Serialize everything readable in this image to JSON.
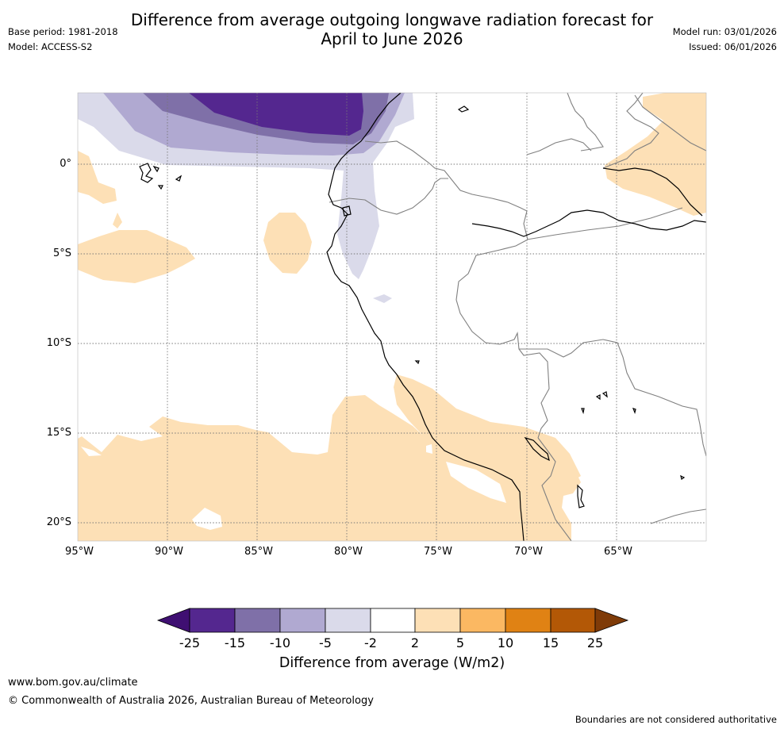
{
  "header": {
    "title_line1": "Difference from average outgoing longwave radiation forecast for",
    "title_line2": "April to June 2026",
    "base_period": "Base period: 1981-2018",
    "model": "Model: ACCESS-S2",
    "model_run": "Model run: 03/01/2026",
    "issued": "Issued: 06/01/2026"
  },
  "map": {
    "lon_range": [
      -95,
      -60
    ],
    "lat_range": [
      -21,
      4
    ],
    "lat_labels": [
      "0°",
      "5°S",
      "10°S",
      "15°S",
      "20°S"
    ],
    "lon_labels": [
      "95°W",
      "90°W",
      "85°W",
      "80°W",
      "75°W",
      "70°W",
      "65°W"
    ]
  },
  "colorbar": {
    "title": "Difference from average (W/m2)",
    "ticks": [
      "-25",
      "-15",
      "-10",
      "-5",
      "-2",
      "2",
      "5",
      "10",
      "15",
      "25"
    ],
    "colors": [
      "#3f0f72",
      "#54278f",
      "#7f70a8",
      "#b0a9d1",
      "#dadaea",
      "#ffffff",
      "#fde0b6",
      "#fbb862",
      "#e08214",
      "#b35806",
      "#7f3b08"
    ]
  },
  "footer": {
    "url": "www.bom.gov.au/climate",
    "copyright": "© Commonwealth of Australia 2026, Australian Bureau of Meteorology",
    "disclaimer": "Boundaries are not considered authoritative"
  }
}
